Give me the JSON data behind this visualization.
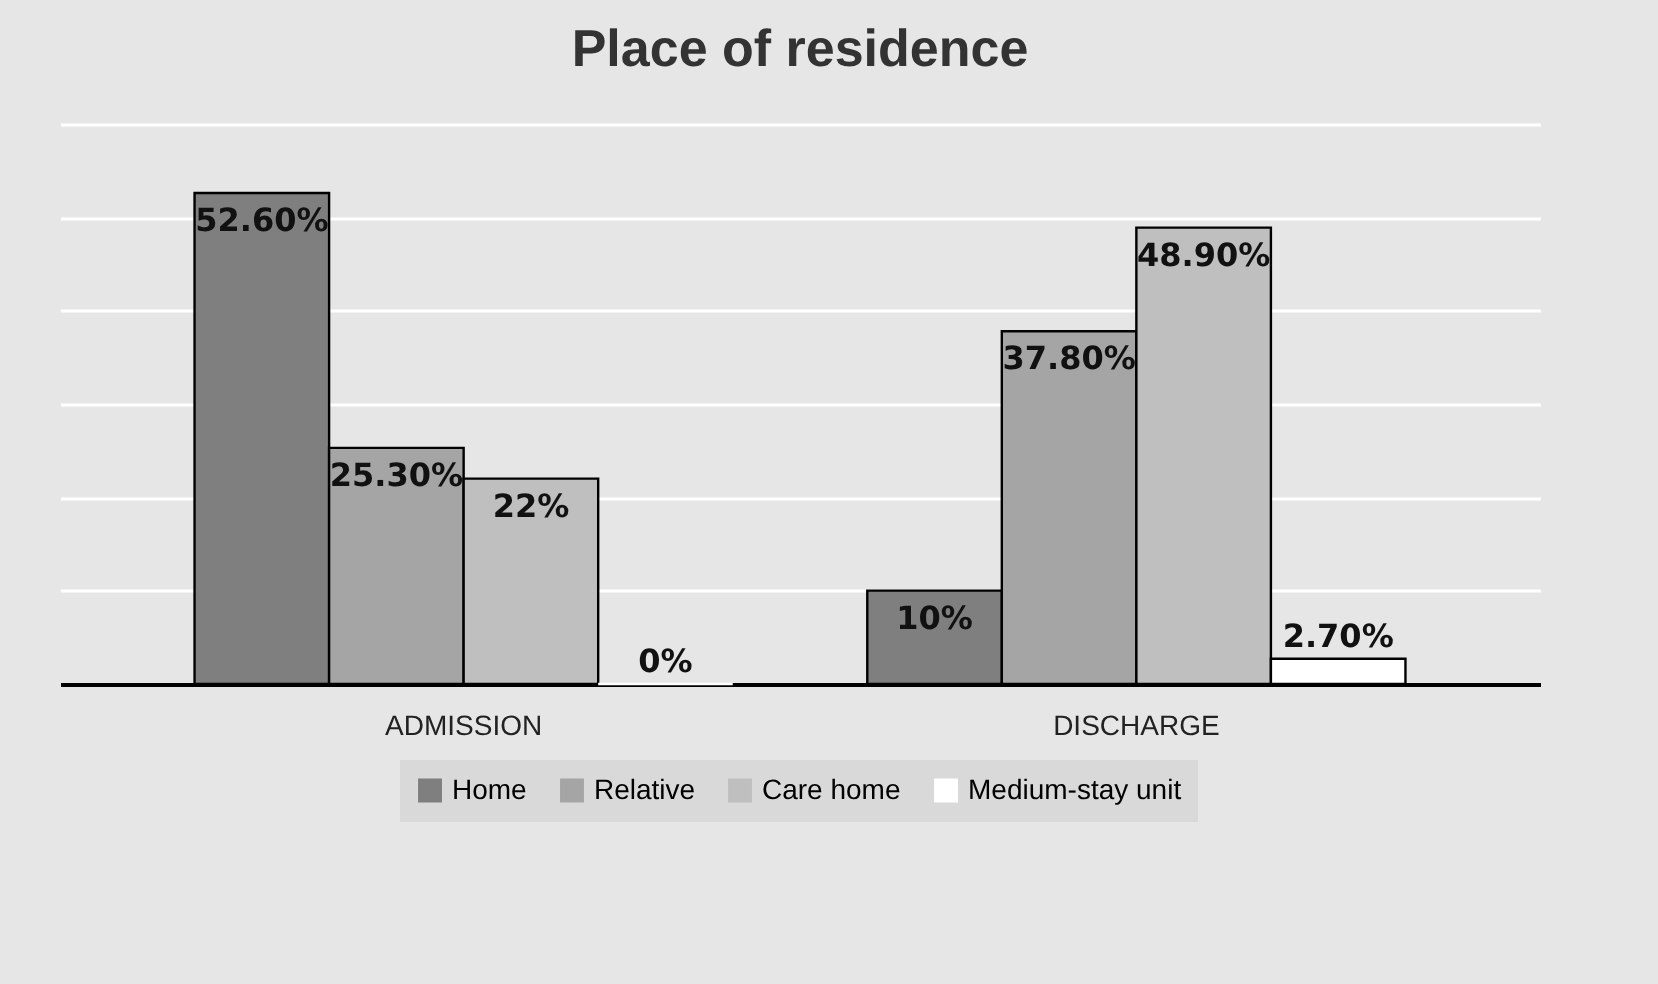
{
  "chart_data": {
    "type": "bar",
    "title": "Place of residence",
    "categories": [
      "ADMISSION",
      "DISCHARGE"
    ],
    "series": [
      {
        "name": "Home",
        "color": "#7f7f7f",
        "values": [
          52.6,
          10
        ],
        "value_labels": [
          "52.60%",
          "10%"
        ]
      },
      {
        "name": "Relative",
        "color": "#a5a5a5",
        "values": [
          25.3,
          37.8
        ],
        "value_labels": [
          "25.30%",
          "37.80%"
        ]
      },
      {
        "name": "Care home",
        "color": "#bfbfbf",
        "values": [
          22,
          48.9
        ],
        "value_labels": [
          "22%",
          "48.90%"
        ]
      },
      {
        "name": "Medium-stay unit",
        "color": "#ffffff",
        "values": [
          0,
          2.7
        ],
        "value_labels": [
          "0%",
          "2.70%"
        ]
      }
    ],
    "ylim": [
      0,
      60
    ],
    "yticks": [
      {
        "value": 0,
        "label": null
      },
      {
        "value": 10,
        "label": null
      },
      {
        "value": 20,
        "label": null
      },
      {
        "value": 30,
        "label": null
      },
      {
        "value": 40,
        "label": null
      },
      {
        "value": 50,
        "label": null
      },
      {
        "value": 60,
        "label": null
      }
    ],
    "grid": "y",
    "legend": "bottom",
    "tick_labels": "x"
  }
}
